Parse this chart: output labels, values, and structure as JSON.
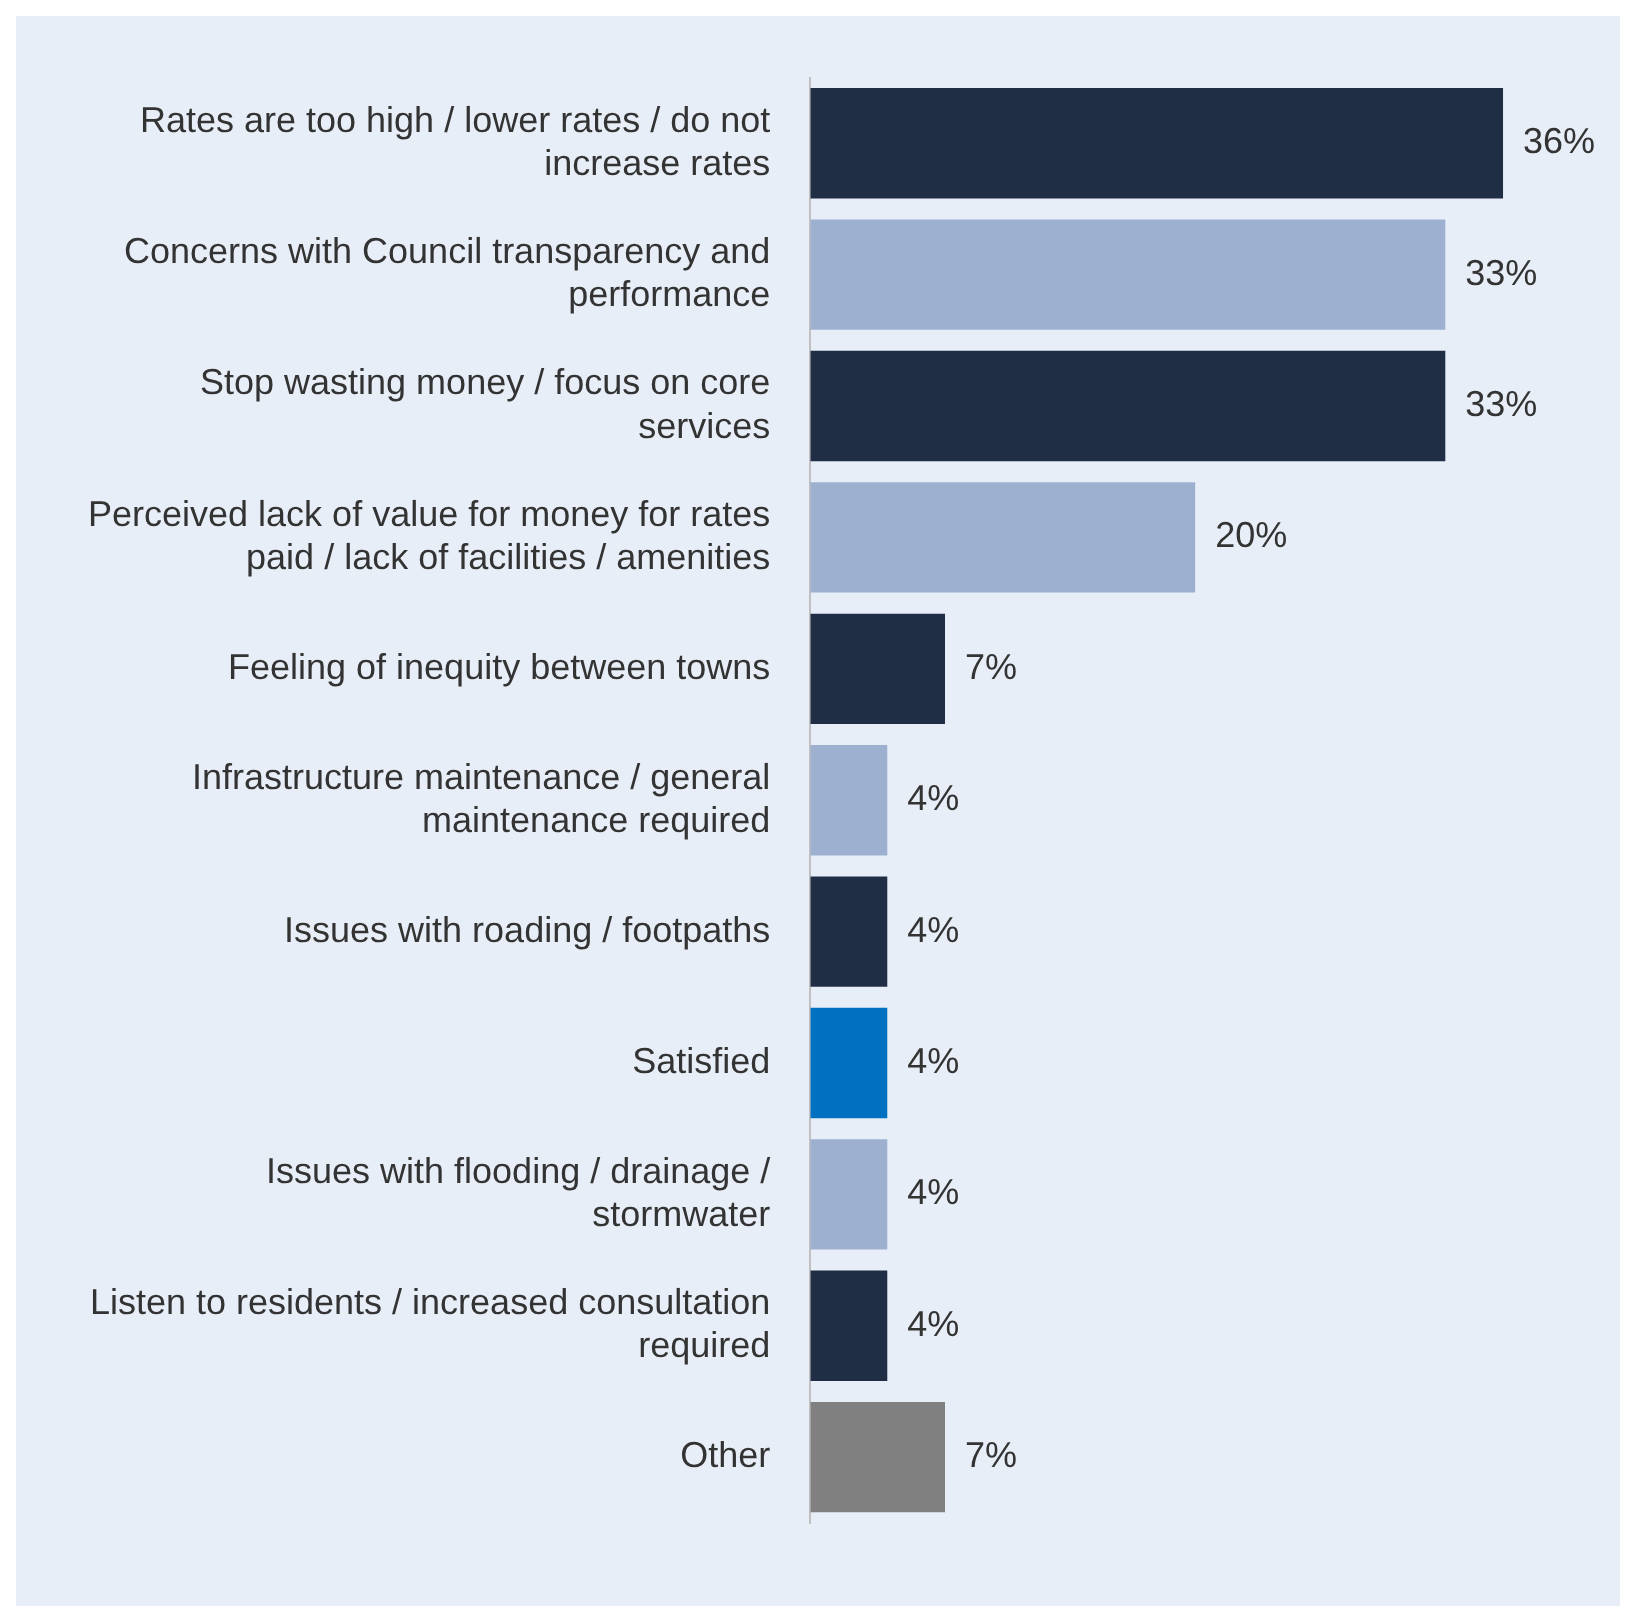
{
  "chart_data": {
    "type": "bar",
    "orientation": "horizontal",
    "tick_labels": "y",
    "categories": [
      "Rates are too high / lower rates / do not increase rates",
      "Concerns with Council transparency and performance",
      "Stop wasting money / focus on core services",
      "Perceived lack of value for money for rates paid / lack of facilities / amenities",
      "Feeling of inequity between towns",
      "Infrastructure maintenance / general maintenance required",
      "Issues with roading / footpaths",
      "Satisfied",
      "Issues with flooding / drainage / stormwater",
      "Listen to residents / increased consultation required",
      "Other"
    ],
    "values": [
      36,
      33,
      33,
      20,
      7,
      4,
      4,
      4,
      4,
      4,
      7
    ],
    "value_labels": [
      "36%",
      "33%",
      "33%",
      "20%",
      "7%",
      "4%",
      "4%",
      "4%",
      "4%",
      "4%",
      "7%"
    ],
    "colors": [
      "#1f2d45",
      "#9eb0d0",
      "#1f2d45",
      "#9eb0d0",
      "#1f2d45",
      "#9eb0d0",
      "#1f2d45",
      "#0070c0",
      "#9eb0d0",
      "#1f2d45",
      "#808080"
    ],
    "grid": false,
    "legend": false
  }
}
